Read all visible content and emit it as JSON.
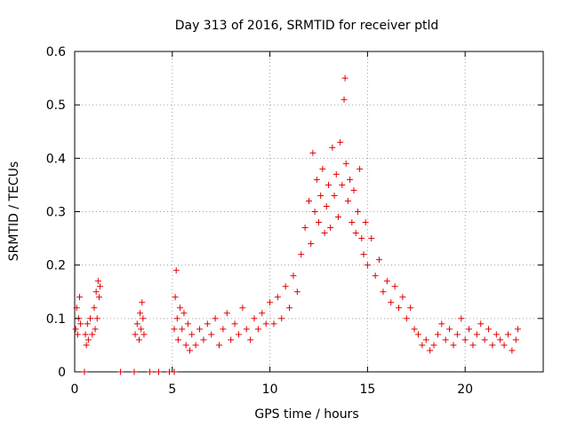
{
  "chart_data": {
    "type": "scatter",
    "title": "Day 313 of 2016, SRMTID for receiver ptld",
    "xlabel": "GPS time / hours",
    "ylabel": "SRMTID / TECUs",
    "xlim": [
      0,
      24
    ],
    "ylim": [
      0,
      0.6
    ],
    "xticks": [
      0,
      5,
      10,
      15,
      20
    ],
    "yticks": [
      0,
      0.1,
      0.2,
      0.3,
      0.4,
      0.5,
      0.6
    ],
    "xtick_labels": [
      "0",
      "5",
      "10",
      "15",
      "20"
    ],
    "ytick_labels": [
      "0",
      "0.1",
      "0.2",
      "0.3",
      "0.4",
      "0.5",
      "0.6"
    ],
    "marker": "+",
    "color": "#e00000",
    "grid": true,
    "series": [
      {
        "name": "SRMTID",
        "points": [
          [
            0.05,
            0.08
          ],
          [
            0.1,
            0.12
          ],
          [
            0.15,
            0.07
          ],
          [
            0.2,
            0.1
          ],
          [
            0.25,
            0.14
          ],
          [
            0.3,
            0.09
          ],
          [
            0.5,
            0.0
          ],
          [
            0.55,
            0.07
          ],
          [
            0.6,
            0.05
          ],
          [
            0.65,
            0.09
          ],
          [
            0.7,
            0.06
          ],
          [
            0.8,
            0.1
          ],
          [
            0.9,
            0.07
          ],
          [
            1.0,
            0.12
          ],
          [
            1.05,
            0.08
          ],
          [
            1.1,
            0.15
          ],
          [
            1.15,
            0.1
          ],
          [
            1.2,
            0.17
          ],
          [
            1.25,
            0.14
          ],
          [
            1.3,
            0.16
          ],
          [
            2.35,
            0.0
          ],
          [
            3.05,
            0.0
          ],
          [
            3.1,
            0.07
          ],
          [
            3.2,
            0.09
          ],
          [
            3.3,
            0.06
          ],
          [
            3.35,
            0.11
          ],
          [
            3.4,
            0.08
          ],
          [
            3.45,
            0.13
          ],
          [
            3.5,
            0.1
          ],
          [
            3.55,
            0.07
          ],
          [
            3.85,
            0.0
          ],
          [
            4.3,
            0.0
          ],
          [
            4.85,
            0.0
          ],
          [
            5.1,
            0.0
          ],
          [
            5.1,
            0.08
          ],
          [
            5.15,
            0.14
          ],
          [
            5.2,
            0.19
          ],
          [
            5.25,
            0.1
          ],
          [
            5.3,
            0.06
          ],
          [
            5.4,
            0.12
          ],
          [
            5.5,
            0.08
          ],
          [
            5.6,
            0.11
          ],
          [
            5.7,
            0.05
          ],
          [
            5.8,
            0.09
          ],
          [
            5.9,
            0.04
          ],
          [
            6.0,
            0.07
          ],
          [
            6.2,
            0.05
          ],
          [
            6.4,
            0.08
          ],
          [
            6.6,
            0.06
          ],
          [
            6.8,
            0.09
          ],
          [
            7.0,
            0.07
          ],
          [
            7.2,
            0.1
          ],
          [
            7.4,
            0.05
          ],
          [
            7.6,
            0.08
          ],
          [
            7.8,
            0.11
          ],
          [
            8.0,
            0.06
          ],
          [
            8.2,
            0.09
          ],
          [
            8.4,
            0.07
          ],
          [
            8.6,
            0.12
          ],
          [
            8.8,
            0.08
          ],
          [
            9.0,
            0.06
          ],
          [
            9.2,
            0.1
          ],
          [
            9.4,
            0.08
          ],
          [
            9.6,
            0.11
          ],
          [
            9.8,
            0.09
          ],
          [
            10.0,
            0.13
          ],
          [
            10.2,
            0.09
          ],
          [
            10.4,
            0.14
          ],
          [
            10.6,
            0.1
          ],
          [
            10.8,
            0.16
          ],
          [
            11.0,
            0.12
          ],
          [
            11.2,
            0.18
          ],
          [
            11.4,
            0.15
          ],
          [
            11.6,
            0.22
          ],
          [
            11.8,
            0.27
          ],
          [
            12.0,
            0.32
          ],
          [
            12.1,
            0.24
          ],
          [
            12.2,
            0.41
          ],
          [
            12.3,
            0.3
          ],
          [
            12.4,
            0.36
          ],
          [
            12.5,
            0.28
          ],
          [
            12.6,
            0.33
          ],
          [
            12.7,
            0.38
          ],
          [
            12.8,
            0.26
          ],
          [
            12.9,
            0.31
          ],
          [
            13.0,
            0.35
          ],
          [
            13.1,
            0.27
          ],
          [
            13.2,
            0.42
          ],
          [
            13.3,
            0.33
          ],
          [
            13.4,
            0.37
          ],
          [
            13.5,
            0.29
          ],
          [
            13.6,
            0.43
          ],
          [
            13.7,
            0.35
          ],
          [
            13.8,
            0.51
          ],
          [
            13.85,
            0.55
          ],
          [
            13.9,
            0.39
          ],
          [
            14.0,
            0.32
          ],
          [
            14.1,
            0.36
          ],
          [
            14.2,
            0.28
          ],
          [
            14.3,
            0.34
          ],
          [
            14.4,
            0.26
          ],
          [
            14.5,
            0.3
          ],
          [
            14.6,
            0.38
          ],
          [
            14.7,
            0.25
          ],
          [
            14.8,
            0.22
          ],
          [
            14.9,
            0.28
          ],
          [
            15.0,
            0.2
          ],
          [
            15.2,
            0.25
          ],
          [
            15.4,
            0.18
          ],
          [
            15.6,
            0.21
          ],
          [
            15.8,
            0.15
          ],
          [
            16.0,
            0.17
          ],
          [
            16.2,
            0.13
          ],
          [
            16.4,
            0.16
          ],
          [
            16.6,
            0.12
          ],
          [
            16.8,
            0.14
          ],
          [
            17.0,
            0.1
          ],
          [
            17.2,
            0.12
          ],
          [
            17.4,
            0.08
          ],
          [
            17.6,
            0.07
          ],
          [
            17.8,
            0.05
          ],
          [
            18.0,
            0.06
          ],
          [
            18.2,
            0.04
          ],
          [
            18.4,
            0.05
          ],
          [
            18.6,
            0.07
          ],
          [
            18.8,
            0.09
          ],
          [
            19.0,
            0.06
          ],
          [
            19.2,
            0.08
          ],
          [
            19.4,
            0.05
          ],
          [
            19.6,
            0.07
          ],
          [
            19.8,
            0.1
          ],
          [
            20.0,
            0.06
          ],
          [
            20.2,
            0.08
          ],
          [
            20.4,
            0.05
          ],
          [
            20.6,
            0.07
          ],
          [
            20.8,
            0.09
          ],
          [
            21.0,
            0.06
          ],
          [
            21.2,
            0.08
          ],
          [
            21.4,
            0.05
          ],
          [
            21.6,
            0.07
          ],
          [
            21.8,
            0.06
          ],
          [
            22.0,
            0.05
          ],
          [
            22.2,
            0.07
          ],
          [
            22.4,
            0.04
          ],
          [
            22.6,
            0.06
          ],
          [
            22.7,
            0.08
          ]
        ]
      }
    ]
  }
}
